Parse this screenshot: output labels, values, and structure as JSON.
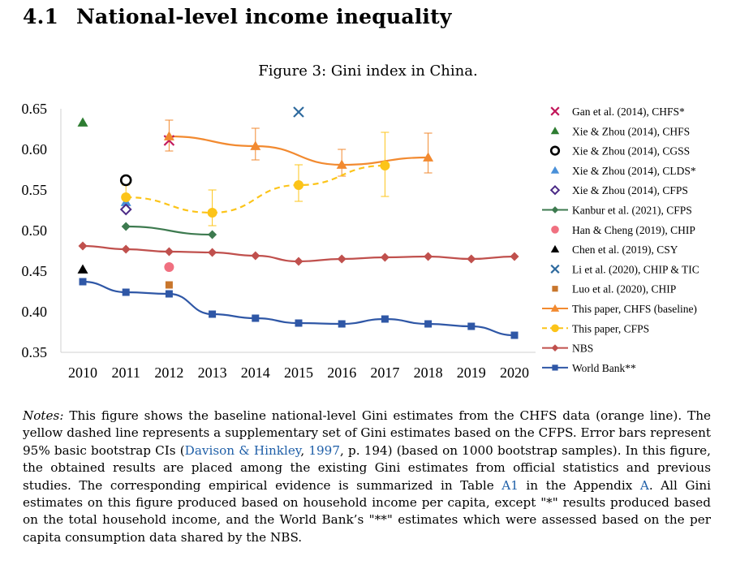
{
  "section": {
    "number": "4.1",
    "title": "National-level income inequality"
  },
  "figure": {
    "caption": "Figure 3: Gini index in China."
  },
  "chart_data": {
    "type": "line",
    "x": [
      2010,
      2011,
      2012,
      2013,
      2014,
      2015,
      2016,
      2017,
      2018,
      2019,
      2020
    ],
    "x_tick_labels": [
      "2010",
      "2011",
      "2012",
      "2013",
      "2014",
      "2015",
      "2016",
      "2017",
      "2018",
      "2019",
      "2020"
    ],
    "ylim": [
      0.35,
      0.65
    ],
    "y_ticks": [
      0.35,
      0.4,
      0.45,
      0.5,
      0.55,
      0.6,
      0.65
    ],
    "y_tick_labels": [
      "0.35",
      "0.40",
      "0.45",
      "0.50",
      "0.55",
      "0.60",
      "0.65"
    ],
    "legend_position": "right",
    "series": [
      {
        "name": "Gan et al. (2014), CHFS*",
        "kind": "point",
        "marker": "x",
        "color": "#c2185b",
        "points": [
          {
            "x": 2012,
            "y": 0.611
          }
        ]
      },
      {
        "name": "Xie & Zhou (2014), CHFS",
        "kind": "point",
        "marker": "triangle",
        "color": "#2e7d32",
        "points": [
          {
            "x": 2010,
            "y": 0.633
          }
        ]
      },
      {
        "name": "Xie & Zhou (2014), CGSS",
        "kind": "point",
        "marker": "ring",
        "color": "#000000",
        "points": [
          {
            "x": 2011,
            "y": 0.562
          }
        ]
      },
      {
        "name": "Xie & Zhou (2014), CLDS*",
        "kind": "point",
        "marker": "triangle",
        "color": "#4a90d9",
        "points": [
          {
            "x": 2011,
            "y": 0.535
          }
        ]
      },
      {
        "name": "Xie & Zhou (2014), CFPS",
        "kind": "point",
        "marker": "diamond-open",
        "color": "#4b2a86",
        "points": [
          {
            "x": 2011,
            "y": 0.526
          }
        ]
      },
      {
        "name": "Kanbur et al. (2021), CFPS",
        "kind": "line",
        "marker": "diamond",
        "color": "#3d7a4f",
        "points": [
          {
            "x": 2011,
            "y": 0.505
          },
          {
            "x": 2013,
            "y": 0.495
          }
        ]
      },
      {
        "name": "Han & Cheng (2019), CHIP",
        "kind": "point",
        "marker": "circle",
        "color": "#f07080",
        "points": [
          {
            "x": 2012,
            "y": 0.455
          }
        ]
      },
      {
        "name": "Chen et al. (2019), CSY",
        "kind": "point",
        "marker": "triangle",
        "color": "#000000",
        "points": [
          {
            "x": 2010,
            "y": 0.452
          }
        ]
      },
      {
        "name": "Li et al. (2020), CHIP & TIC",
        "kind": "point",
        "marker": "x",
        "color": "#2e6a9e",
        "points": [
          {
            "x": 2015,
            "y": 0.646
          }
        ]
      },
      {
        "name": "Luo et al. (2020), CHIP",
        "kind": "point",
        "marker": "square",
        "color": "#c8762c",
        "points": [
          {
            "x": 2012,
            "y": 0.433
          }
        ]
      },
      {
        "name": "This paper, CHFS (baseline)",
        "kind": "line",
        "marker": "triangle",
        "color": "#f28a30",
        "points": [
          {
            "x": 2012,
            "y": 0.616,
            "lo": 0.598,
            "hi": 0.636
          },
          {
            "x": 2014,
            "y": 0.604,
            "lo": 0.587,
            "hi": 0.626
          },
          {
            "x": 2016,
            "y": 0.581,
            "lo": 0.567,
            "hi": 0.6
          },
          {
            "x": 2018,
            "y": 0.59,
            "lo": 0.571,
            "hi": 0.62
          }
        ]
      },
      {
        "name": "This paper, CFPS",
        "kind": "dashed",
        "marker": "circle",
        "color": "#fcc419",
        "points": [
          {
            "x": 2011,
            "y": 0.541,
            "lo": 0.527,
            "hi": 0.556
          },
          {
            "x": 2013,
            "y": 0.522,
            "lo": 0.506,
            "hi": 0.55
          },
          {
            "x": 2015,
            "y": 0.556,
            "lo": 0.536,
            "hi": 0.581
          },
          {
            "x": 2017,
            "y": 0.58,
            "lo": 0.542,
            "hi": 0.621
          }
        ]
      },
      {
        "name": "NBS",
        "kind": "line",
        "marker": "diamond",
        "color": "#c0504d",
        "points": [
          {
            "x": 2010,
            "y": 0.481
          },
          {
            "x": 2011,
            "y": 0.477
          },
          {
            "x": 2012,
            "y": 0.474
          },
          {
            "x": 2013,
            "y": 0.473
          },
          {
            "x": 2014,
            "y": 0.469
          },
          {
            "x": 2015,
            "y": 0.462
          },
          {
            "x": 2016,
            "y": 0.465
          },
          {
            "x": 2017,
            "y": 0.467
          },
          {
            "x": 2018,
            "y": 0.468
          },
          {
            "x": 2019,
            "y": 0.465
          },
          {
            "x": 2020,
            "y": 0.468
          }
        ]
      },
      {
        "name": "World Bank**",
        "kind": "line",
        "marker": "square",
        "color": "#2f57a6",
        "points": [
          {
            "x": 2010,
            "y": 0.437
          },
          {
            "x": 2011,
            "y": 0.424
          },
          {
            "x": 2012,
            "y": 0.422
          },
          {
            "x": 2013,
            "y": 0.397
          },
          {
            "x": 2014,
            "y": 0.392
          },
          {
            "x": 2015,
            "y": 0.386
          },
          {
            "x": 2016,
            "y": 0.385
          },
          {
            "x": 2017,
            "y": 0.391
          },
          {
            "x": 2018,
            "y": 0.385
          },
          {
            "x": 2019,
            "y": 0.382
          },
          {
            "x": 2020,
            "y": 0.371
          }
        ]
      }
    ]
  },
  "notes": {
    "lead": "Notes:",
    "s1": " This figure shows the baseline national-level Gini estimates from the CHFS data (orange line). The yellow dashed line represents a supplementary set of Gini estimates based on the CFPS. Error bars represent 95% basic bootstrap CIs (",
    "ref_authors": "Davison & Hinkley",
    "s2": ", ",
    "ref_year": "1997",
    "s3": ", p.  194) (based on 1000 bootstrap samples). In this figure, the obtained results are placed among the existing Gini estimates from official statistics and previous studies. The corresponding empirical evidence is summarized in Table ",
    "ref_table": "A1",
    "s4": " in the Appendix ",
    "ref_appendix": "A",
    "s5": ". All Gini estimates on this figure produced based on household income per capita, except \"*\" results produced based on the total household income, and the World Bank’s \"**\" estimates which were assessed based on the per capita consumption data shared by the NBS."
  }
}
